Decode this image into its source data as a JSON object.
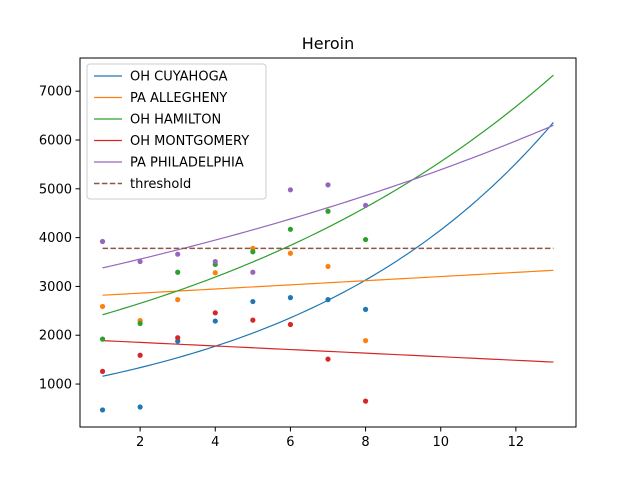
{
  "chart_data": {
    "type": "scatter",
    "title": "Heroin",
    "xlabel": "",
    "ylabel": "",
    "xlim": [
      0.4,
      13.6
    ],
    "ylim": [
      120,
      7680
    ],
    "xticks": [
      2,
      4,
      6,
      8,
      10,
      12
    ],
    "yticks": [
      1000,
      2000,
      3000,
      4000,
      5000,
      6000,
      7000
    ],
    "grid": false,
    "legend_position": "top-left",
    "series": [
      {
        "name": "OH CUYAHOGA",
        "color": "#1f77b4",
        "points": [
          [
            1,
            470
          ],
          [
            2,
            530
          ],
          [
            3,
            1880
          ],
          [
            4,
            2290
          ],
          [
            5,
            2690
          ],
          [
            6,
            2770
          ],
          [
            7,
            2730
          ],
          [
            8,
            2530
          ]
        ],
        "fit": {
          "kind": "exponential",
          "x": [
            1,
            13
          ],
          "y": [
            1160,
            6360
          ]
        }
      },
      {
        "name": "PA ALLEGHENY",
        "color": "#ff7f0e",
        "points": [
          [
            1,
            2590
          ],
          [
            2,
            2300
          ],
          [
            3,
            2730
          ],
          [
            4,
            3280
          ],
          [
            5,
            3780
          ],
          [
            6,
            3680
          ],
          [
            7,
            3410
          ],
          [
            8,
            1890
          ]
        ],
        "fit": {
          "kind": "linear",
          "x": [
            1,
            13
          ],
          "y": [
            2820,
            3330
          ]
        }
      },
      {
        "name": "OH HAMILTON",
        "color": "#2ca02c",
        "points": [
          [
            1,
            1920
          ],
          [
            2,
            2240
          ],
          [
            3,
            3290
          ],
          [
            4,
            3450
          ],
          [
            5,
            3710
          ],
          [
            6,
            4170
          ],
          [
            7,
            4540
          ],
          [
            8,
            3960
          ]
        ],
        "fit": {
          "kind": "exponential",
          "x": [
            1,
            13
          ],
          "y": [
            2420,
            7330
          ]
        }
      },
      {
        "name": "OH MONTGOMERY",
        "color": "#d62728",
        "points": [
          [
            1,
            1260
          ],
          [
            2,
            1590
          ],
          [
            3,
            1950
          ],
          [
            4,
            2460
          ],
          [
            5,
            2310
          ],
          [
            6,
            2220
          ],
          [
            7,
            1510
          ],
          [
            8,
            650
          ]
        ],
        "fit": {
          "kind": "linear",
          "x": [
            1,
            13
          ],
          "y": [
            1890,
            1450
          ]
        }
      },
      {
        "name": "PA PHILADELPHIA",
        "color": "#9467bd",
        "points": [
          [
            1,
            3920
          ],
          [
            2,
            3510
          ],
          [
            3,
            3660
          ],
          [
            4,
            3510
          ],
          [
            5,
            3290
          ],
          [
            6,
            4980
          ],
          [
            7,
            5080
          ],
          [
            8,
            4660
          ]
        ],
        "fit": {
          "kind": "exponential",
          "x": [
            1,
            13
          ],
          "y": [
            3380,
            6300
          ]
        }
      }
    ],
    "threshold": {
      "name": "threshold",
      "value": 3780,
      "x": [
        1,
        13
      ],
      "color": "#8c564b"
    }
  }
}
